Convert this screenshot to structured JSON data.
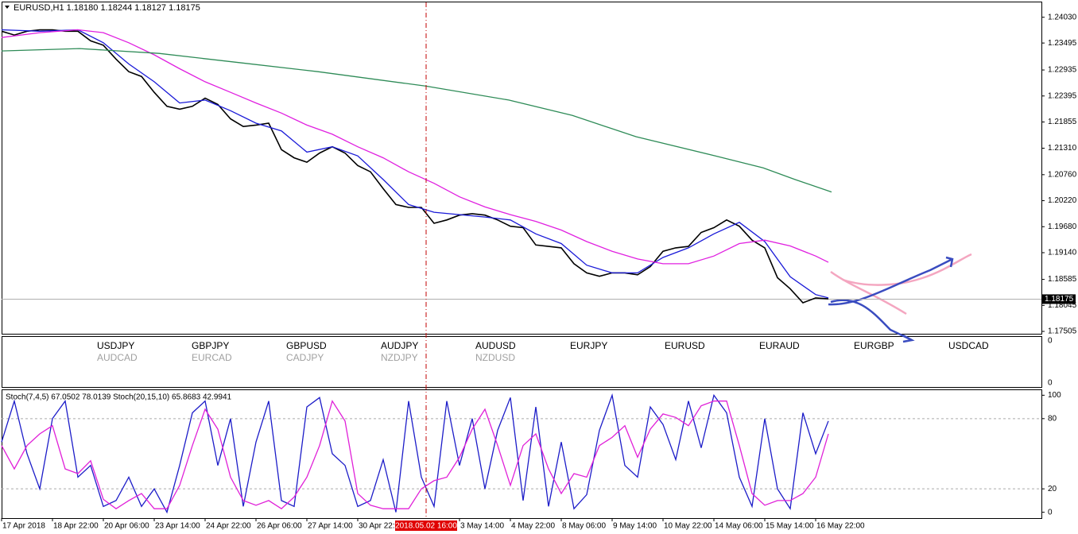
{
  "chart_data": [
    {
      "type": "line",
      "title": "EURUSD,H1  1.18180 1.18244 1.18127 1.18175",
      "ylim": [
        1.17456,
        1.24306
      ],
      "yticks": [
        {
          "value": 1.2403,
          "label": "1.24030"
        },
        {
          "value": 1.23495,
          "label": "1.23495"
        },
        {
          "value": 1.22935,
          "label": "1.22935"
        },
        {
          "value": 1.22395,
          "label": "1.22395"
        },
        {
          "value": 1.21855,
          "label": "1.21855"
        },
        {
          "value": 1.2131,
          "label": "1.21310"
        },
        {
          "value": 1.2076,
          "label": "1.20760"
        },
        {
          "value": 1.2022,
          "label": "1.20220"
        },
        {
          "value": 1.1968,
          "label": "1.19680"
        },
        {
          "value": 1.1914,
          "label": "1.19140"
        },
        {
          "value": 1.18585,
          "label": "1.18585"
        },
        {
          "value": 1.18045,
          "label": "1.18045"
        },
        {
          "value": 1.17505,
          "label": "1.17505"
        }
      ],
      "xlim": [
        0,
        654
      ],
      "xticks": [
        {
          "value": 0,
          "label": "17 Apr 2018"
        },
        {
          "value": 32,
          "label": "18 Apr 22:00"
        },
        {
          "value": 64,
          "label": "20 Apr 06:00"
        },
        {
          "value": 96,
          "label": "23 Apr 14:00"
        },
        {
          "value": 128,
          "label": "24 Apr 22:00"
        },
        {
          "value": 160,
          "label": "26 Apr 06:00"
        },
        {
          "value": 192,
          "label": "27 Apr 14:00"
        },
        {
          "value": 224,
          "label": "30 Apr 22:00"
        },
        {
          "value": 288,
          "label": "3 May 14:00"
        },
        {
          "value": 320,
          "label": "4 May 22:00"
        },
        {
          "value": 352,
          "label": "8 May 06:00"
        },
        {
          "value": 384,
          "label": "9 May 14:00"
        },
        {
          "value": 416,
          "label": "10 May 22:00"
        },
        {
          "value": 448,
          "label": "14 May 06:00"
        },
        {
          "value": 480,
          "label": "15 May 14:00"
        },
        {
          "value": 512,
          "label": "16 May 22:00"
        }
      ],
      "cursor": {
        "x": 267,
        "label": "2018.05.02 16:00"
      },
      "current_price": {
        "value": 1.18175,
        "label": "1.18175"
      },
      "series": [
        {
          "color": "#000000",
          "x": [
            0,
            8,
            16,
            24,
            32,
            40,
            48,
            56,
            64,
            72,
            80,
            88,
            96,
            104,
            112,
            120,
            128,
            136,
            144,
            152,
            160,
            168,
            176,
            184,
            192,
            200,
            208,
            216,
            224,
            232,
            240,
            248,
            256,
            264,
            272,
            280,
            288,
            296,
            304,
            312,
            320,
            328,
            336,
            344,
            352,
            360,
            368,
            376,
            384,
            392,
            400,
            408,
            416,
            424,
            432,
            440,
            448,
            456,
            464,
            472,
            480,
            488,
            496,
            504,
            512,
            520
          ],
          "values": [
            1.2374,
            1.2366,
            1.2374,
            1.2377,
            1.2377,
            1.2374,
            1.2374,
            1.2354,
            1.2345,
            1.2316,
            1.229,
            1.228,
            1.2247,
            1.2218,
            1.2212,
            1.2218,
            1.2235,
            1.2222,
            1.2192,
            1.2176,
            1.2179,
            1.2183,
            1.2128,
            1.2111,
            1.2102,
            1.2121,
            1.2134,
            1.2121,
            1.2095,
            1.2082,
            1.2047,
            1.2014,
            1.2008,
            1.2008,
            1.1975,
            1.1982,
            1.1992,
            1.1995,
            1.1992,
            1.1982,
            1.1969,
            1.1966,
            1.193,
            1.1927,
            1.1924,
            1.1891,
            1.1872,
            1.1865,
            1.1872,
            1.1872,
            1.1868,
            1.1885,
            1.1917,
            1.1924,
            1.1927,
            1.1956,
            1.1966,
            1.1982,
            1.1969,
            1.194,
            1.1924,
            1.1862,
            1.1839,
            1.181,
            1.182,
            1.1818
          ]
        },
        {
          "color": "#1a1ad8",
          "x": [
            0,
            24,
            48,
            64,
            80,
            96,
            112,
            128,
            144,
            160,
            176,
            192,
            208,
            224,
            240,
            256,
            272,
            288,
            304,
            320,
            336,
            352,
            368,
            384,
            400,
            416,
            432,
            448,
            464,
            480,
            496,
            512,
            520
          ],
          "values": [
            1.2377,
            1.2374,
            1.2377,
            1.235,
            1.2306,
            1.2269,
            1.2225,
            1.2231,
            1.2209,
            1.2183,
            1.2167,
            1.2123,
            1.2134,
            1.2115,
            1.2066,
            1.2014,
            1.1998,
            1.1993,
            1.1988,
            1.1982,
            1.1953,
            1.1933,
            1.1888,
            1.1872,
            1.1872,
            1.1904,
            1.1924,
            1.1953,
            1.1977,
            1.1937,
            1.1864,
            1.1827,
            1.182
          ]
        },
        {
          "color": "#e020e0",
          "x": [
            0,
            24,
            48,
            64,
            80,
            96,
            112,
            128,
            144,
            160,
            176,
            192,
            208,
            224,
            240,
            256,
            272,
            288,
            304,
            320,
            336,
            352,
            368,
            384,
            400,
            416,
            432,
            448,
            464,
            480,
            496,
            512,
            520
          ],
          "values": [
            1.2361,
            1.2371,
            1.2377,
            1.2371,
            1.235,
            1.2325,
            1.2296,
            1.2269,
            1.2247,
            1.2225,
            1.2204,
            1.2179,
            1.216,
            1.2134,
            1.2111,
            1.2082,
            1.2058,
            1.203,
            1.2009,
            1.1993,
            1.1979,
            1.1961,
            1.1937,
            1.1917,
            1.1901,
            1.1891,
            1.1891,
            1.1907,
            1.1933,
            1.194,
            1.1928,
            1.1907,
            1.1894
          ]
        },
        {
          "color": "#2e8b57",
          "x": [
            0,
            49,
            99,
            149,
            199,
            267,
            319,
            359,
            399,
            449,
            479,
            499,
            522
          ],
          "values": [
            1.2333,
            1.2338,
            1.2328,
            1.2309,
            1.229,
            1.226,
            1.2231,
            1.2199,
            1.2155,
            1.2115,
            1.209,
            1.2066,
            1.204
          ]
        }
      ]
    },
    {
      "type": "label-panel",
      "yticks": [
        0,
        0
      ],
      "rows": [
        [
          "USDJPY",
          "GBPJPY",
          "GBPUSD",
          "AUDJPY",
          "AUDUSD",
          "EURJPY",
          "EURUSD",
          "EURAUD",
          "EURGBP",
          "USDCAD"
        ],
        [
          "AUDCAD",
          "EURCAD",
          "CADJPY",
          "NZDJPY",
          "NZDUSD"
        ]
      ]
    },
    {
      "type": "line",
      "title": "Stoch(7,4,5) 67.0502 78.0139  Stoch(20,15,10) 65.8683 42.9941",
      "ylim": [
        -5,
        105
      ],
      "yticks": [
        0,
        20,
        80,
        100
      ],
      "levels": [
        20,
        80
      ],
      "xlim": [
        0,
        654
      ],
      "x": [
        0,
        8,
        16,
        24,
        32,
        40,
        48,
        56,
        64,
        72,
        80,
        88,
        96,
        104,
        112,
        120,
        128,
        136,
        144,
        152,
        160,
        168,
        176,
        184,
        192,
        200,
        208,
        216,
        224,
        232,
        240,
        248,
        256,
        264,
        272,
        280,
        288,
        296,
        304,
        312,
        320,
        328,
        336,
        344,
        352,
        360,
        368,
        376,
        384,
        392,
        400,
        408,
        416,
        424,
        432,
        440,
        448,
        456,
        464,
        472,
        480,
        488,
        496,
        504,
        512,
        520
      ],
      "series": [
        {
          "color": "#1c1cc8",
          "values": [
            60,
            95,
            50,
            20,
            80,
            95,
            30,
            40,
            5,
            10,
            30,
            5,
            20,
            0,
            40,
            85,
            95,
            40,
            80,
            5,
            60,
            95,
            10,
            5,
            90,
            98,
            50,
            40,
            5,
            10,
            45,
            0,
            95,
            30,
            5,
            95,
            40,
            80,
            20,
            70,
            98,
            10,
            90,
            5,
            60,
            3,
            15,
            70,
            100,
            40,
            30,
            90,
            75,
            45,
            95,
            55,
            100,
            85,
            30,
            5,
            80,
            20,
            3,
            85,
            50,
            78
          ]
        },
        {
          "color": "#e020d8",
          "values": [
            57,
            37,
            57,
            67,
            74,
            37,
            33,
            44,
            11,
            3,
            10,
            16,
            3,
            3,
            23,
            57,
            88,
            71,
            30,
            10,
            6,
            10,
            3,
            13,
            30,
            57,
            95,
            78,
            16,
            6,
            3,
            3,
            3,
            20,
            27,
            30,
            47,
            71,
            88,
            57,
            23,
            57,
            67,
            37,
            16,
            33,
            30,
            57,
            64,
            74,
            47,
            71,
            84,
            81,
            74,
            91,
            95,
            95,
            57,
            16,
            6,
            10,
            10,
            16,
            30,
            67
          ]
        }
      ]
    }
  ]
}
